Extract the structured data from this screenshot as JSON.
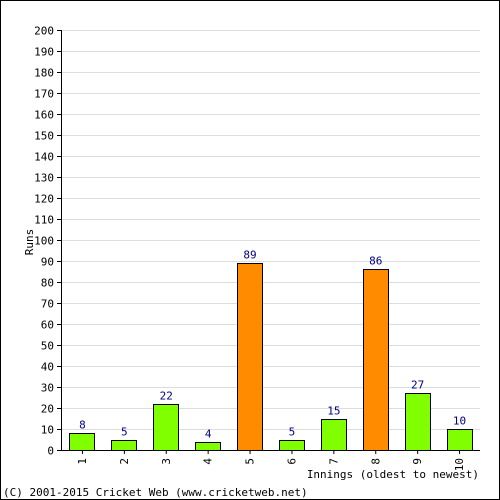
{
  "chart_data": {
    "type": "bar",
    "categories": [
      "1",
      "2",
      "3",
      "4",
      "5",
      "6",
      "7",
      "8",
      "9",
      "10"
    ],
    "values": [
      8,
      5,
      22,
      4,
      89,
      5,
      15,
      86,
      27,
      10
    ],
    "ylim": [
      0,
      200
    ],
    "yticks": [
      0,
      10,
      20,
      30,
      40,
      50,
      60,
      70,
      80,
      90,
      100,
      110,
      120,
      130,
      140,
      150,
      160,
      170,
      180,
      190,
      200
    ],
    "ylabel": "Runs",
    "xlabel": "Innings (oldest to newest)",
    "grid": true,
    "colors": {
      "normal": "#7fff00",
      "fifty": "#ff8c00",
      "label": "#000080",
      "grid": "#dddddd",
      "axis": "#000000"
    }
  },
  "footer": {
    "copyright": "(C) 2001-2015 Cricket Web (www.cricketweb.net)"
  }
}
